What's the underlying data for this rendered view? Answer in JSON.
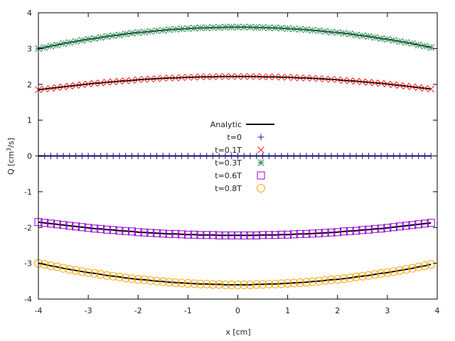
{
  "chart_data": {
    "type": "scatter",
    "title": "",
    "xlabel": "x [cm]",
    "ylabel": "Q [cm³/s]",
    "ylabel_parts": {
      "main": "Q [cm",
      "sup": "3",
      "tail": "/s]"
    },
    "xlim": [
      -4,
      4
    ],
    "ylim": [
      -4,
      4
    ],
    "xticks": [
      -4,
      -3,
      -2,
      -1,
      0,
      1,
      2,
      3,
      4
    ],
    "yticks": [
      -4,
      -3,
      -2,
      -1,
      0,
      1,
      2,
      3,
      4
    ],
    "grid": false,
    "legend_position": "center",
    "x": [
      -4,
      -3.875,
      -3.75,
      -3.625,
      -3.5,
      -3.375,
      -3.25,
      -3.125,
      -3,
      -2.875,
      -2.75,
      -2.625,
      -2.5,
      -2.375,
      -2.25,
      -2.125,
      -2,
      -1.875,
      -1.75,
      -1.625,
      -1.5,
      -1.375,
      -1.25,
      -1.125,
      -1,
      -0.875,
      -0.75,
      -0.625,
      -0.5,
      -0.375,
      -0.25,
      -0.125,
      0,
      0.125,
      0.25,
      0.375,
      0.5,
      0.625,
      0.75,
      0.875,
      1,
      1.125,
      1.25,
      1.375,
      1.5,
      1.625,
      1.75,
      1.875,
      2,
      2.125,
      2.25,
      2.375,
      2.5,
      2.625,
      2.75,
      2.875,
      3,
      3.125,
      3.25,
      3.375,
      3.5,
      3.625,
      3.75,
      3.875
    ],
    "analytic": {
      "name": "Analytic",
      "color": "#000000"
    },
    "series": [
      {
        "name": "t=0",
        "marker": "plus",
        "color": "#1a1a9e",
        "values": [
          0,
          0,
          0,
          0,
          0,
          0,
          0,
          0,
          0,
          0,
          0,
          0,
          0,
          0,
          0,
          0,
          0,
          0,
          0,
          0,
          0,
          0,
          0,
          0,
          0,
          0,
          0,
          0,
          0,
          0,
          0,
          0,
          0,
          0,
          0,
          0,
          0,
          0,
          0,
          0,
          0,
          0,
          0,
          0,
          0,
          0,
          0,
          0,
          0,
          0,
          0,
          0,
          0,
          0,
          0,
          0,
          0,
          0,
          0,
          0,
          0,
          0,
          0,
          0
        ]
      },
      {
        "name": "t=0.1T",
        "marker": "cross",
        "color": "#ee1c1c",
        "values": [
          1.85,
          1.87,
          1.89,
          1.91,
          1.93,
          1.95,
          1.97,
          1.99,
          2.01,
          2.03,
          2.04,
          2.06,
          2.07,
          2.09,
          2.1,
          2.11,
          2.13,
          2.14,
          2.15,
          2.16,
          2.17,
          2.18,
          2.18,
          2.19,
          2.2,
          2.2,
          2.21,
          2.21,
          2.21,
          2.22,
          2.22,
          2.22,
          2.22,
          2.22,
          2.22,
          2.22,
          2.21,
          2.21,
          2.21,
          2.2,
          2.2,
          2.19,
          2.18,
          2.18,
          2.17,
          2.16,
          2.15,
          2.14,
          2.13,
          2.11,
          2.1,
          2.09,
          2.07,
          2.06,
          2.04,
          2.03,
          2.01,
          1.99,
          1.97,
          1.95,
          1.93,
          1.91,
          1.89,
          1.87
        ]
      },
      {
        "name": "t=0.3T",
        "marker": "star",
        "color": "#2e8b57",
        "values": [
          3.0,
          3.03,
          3.07,
          3.1,
          3.14,
          3.17,
          3.2,
          3.23,
          3.26,
          3.28,
          3.31,
          3.34,
          3.36,
          3.38,
          3.41,
          3.43,
          3.45,
          3.46,
          3.48,
          3.5,
          3.51,
          3.53,
          3.54,
          3.55,
          3.56,
          3.57,
          3.58,
          3.58,
          3.59,
          3.59,
          3.6,
          3.6,
          3.6,
          3.6,
          3.6,
          3.59,
          3.59,
          3.58,
          3.58,
          3.57,
          3.56,
          3.55,
          3.54,
          3.53,
          3.51,
          3.5,
          3.48,
          3.46,
          3.45,
          3.43,
          3.41,
          3.38,
          3.36,
          3.34,
          3.31,
          3.28,
          3.26,
          3.23,
          3.2,
          3.17,
          3.14,
          3.1,
          3.07,
          3.03
        ]
      },
      {
        "name": "t=0.6T",
        "marker": "square",
        "color": "#9400d3",
        "values": [
          -1.85,
          -1.87,
          -1.89,
          -1.91,
          -1.93,
          -1.95,
          -1.97,
          -1.99,
          -2.01,
          -2.03,
          -2.04,
          -2.06,
          -2.07,
          -2.09,
          -2.1,
          -2.11,
          -2.13,
          -2.14,
          -2.15,
          -2.16,
          -2.17,
          -2.18,
          -2.18,
          -2.19,
          -2.2,
          -2.2,
          -2.21,
          -2.21,
          -2.21,
          -2.22,
          -2.22,
          -2.22,
          -2.22,
          -2.22,
          -2.22,
          -2.22,
          -2.21,
          -2.21,
          -2.21,
          -2.2,
          -2.2,
          -2.19,
          -2.18,
          -2.18,
          -2.17,
          -2.16,
          -2.15,
          -2.14,
          -2.13,
          -2.11,
          -2.1,
          -2.09,
          -2.07,
          -2.06,
          -2.04,
          -2.03,
          -2.01,
          -1.99,
          -1.97,
          -1.95,
          -1.93,
          -1.91,
          -1.89,
          -1.87
        ]
      },
      {
        "name": "t=0.8T",
        "marker": "circle",
        "color": "#ffa500",
        "values": [
          -3.0,
          -3.03,
          -3.07,
          -3.1,
          -3.14,
          -3.17,
          -3.2,
          -3.23,
          -3.26,
          -3.28,
          -3.31,
          -3.34,
          -3.36,
          -3.38,
          -3.41,
          -3.43,
          -3.45,
          -3.46,
          -3.48,
          -3.5,
          -3.51,
          -3.53,
          -3.54,
          -3.55,
          -3.56,
          -3.57,
          -3.58,
          -3.58,
          -3.59,
          -3.59,
          -3.6,
          -3.6,
          -3.6,
          -3.6,
          -3.6,
          -3.59,
          -3.59,
          -3.58,
          -3.58,
          -3.57,
          -3.56,
          -3.55,
          -3.54,
          -3.53,
          -3.51,
          -3.5,
          -3.48,
          -3.46,
          -3.45,
          -3.43,
          -3.41,
          -3.38,
          -3.36,
          -3.34,
          -3.31,
          -3.28,
          -3.26,
          -3.23,
          -3.2,
          -3.17,
          -3.14,
          -3.1,
          -3.07,
          -3.03
        ]
      }
    ]
  }
}
